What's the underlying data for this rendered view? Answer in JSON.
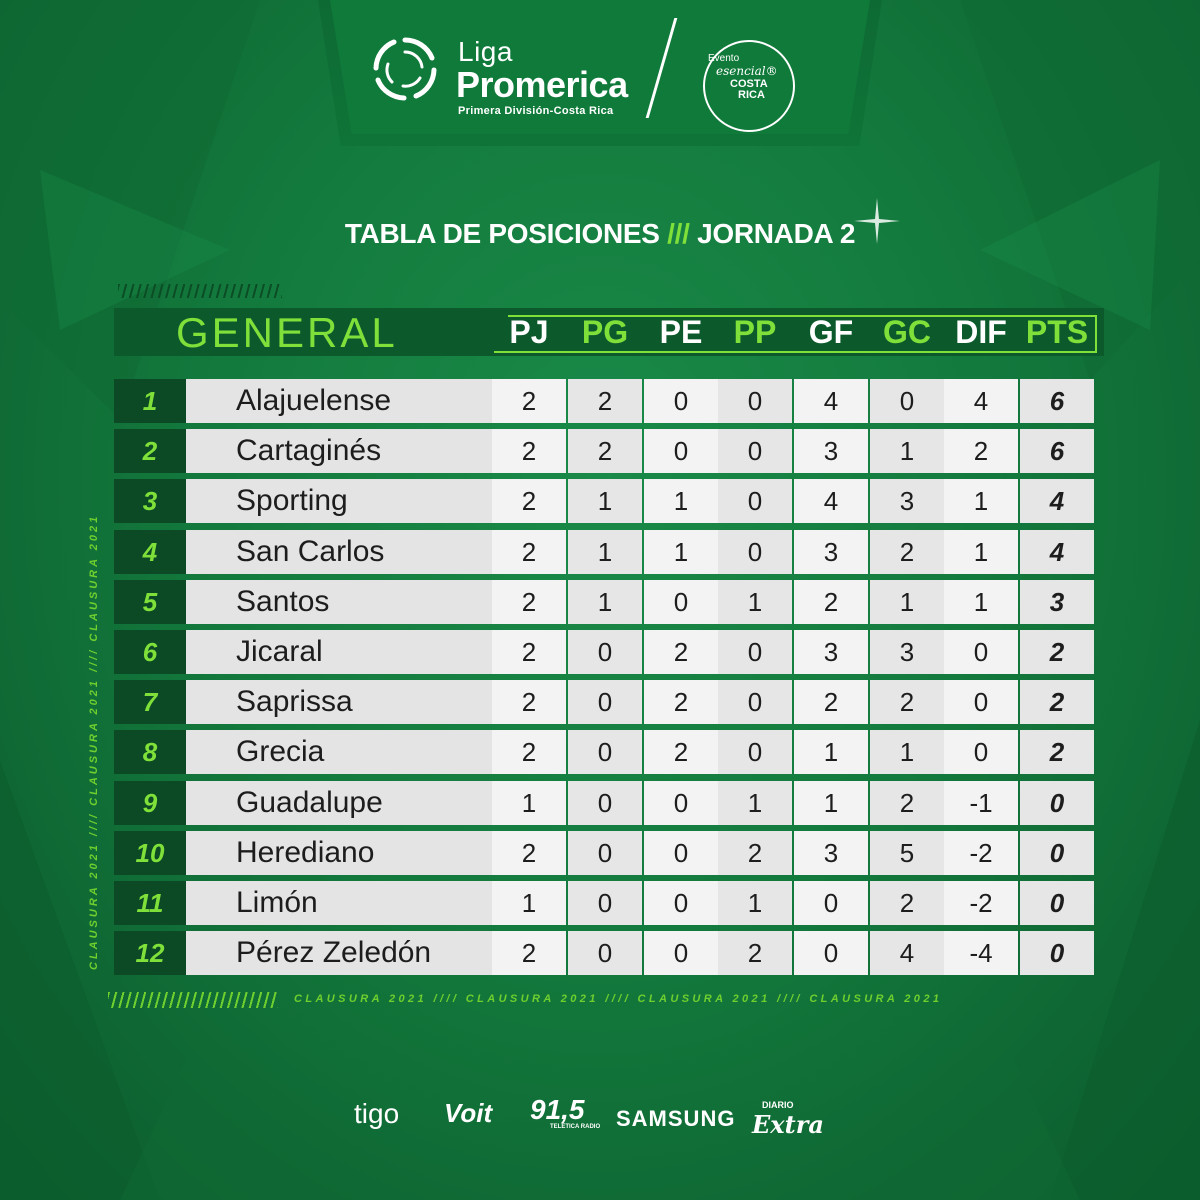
{
  "brand": {
    "liga": "Liga",
    "promerica": "Promerica",
    "subtitle": "Primera División-Costa Rica",
    "badge": {
      "line1": "Evento",
      "line2": "esencial®",
      "line3": "COSTA",
      "line4": "RICA"
    }
  },
  "title": {
    "left": "TABLA DE POSICIONES",
    "sep": "///",
    "right": "JORNADA 2"
  },
  "table": {
    "section_label": "GENERAL",
    "columns": [
      "PJ",
      "PG",
      "PE",
      "PP",
      "GF",
      "GC",
      "DIF",
      "PTS"
    ],
    "rows": [
      {
        "pos": "1",
        "team": "Alajuelense",
        "v": [
          "2",
          "2",
          "0",
          "0",
          "4",
          "0",
          "4",
          "6"
        ]
      },
      {
        "pos": "2",
        "team": "Cartaginés",
        "v": [
          "2",
          "2",
          "0",
          "0",
          "3",
          "1",
          "2",
          "6"
        ]
      },
      {
        "pos": "3",
        "team": "Sporting",
        "v": [
          "2",
          "1",
          "1",
          "0",
          "4",
          "3",
          "1",
          "4"
        ]
      },
      {
        "pos": "4",
        "team": "San Carlos",
        "v": [
          "2",
          "1",
          "1",
          "0",
          "3",
          "2",
          "1",
          "4"
        ]
      },
      {
        "pos": "5",
        "team": "Santos",
        "v": [
          "2",
          "1",
          "0",
          "1",
          "2",
          "1",
          "1",
          "3"
        ]
      },
      {
        "pos": "6",
        "team": "Jicaral",
        "v": [
          "2",
          "0",
          "2",
          "0",
          "3",
          "3",
          "0",
          "2"
        ]
      },
      {
        "pos": "7",
        "team": "Saprissa",
        "v": [
          "2",
          "0",
          "2",
          "0",
          "2",
          "2",
          "0",
          "2"
        ]
      },
      {
        "pos": "8",
        "team": "Grecia",
        "v": [
          "2",
          "0",
          "2",
          "0",
          "1",
          "1",
          "0",
          "2"
        ]
      },
      {
        "pos": "9",
        "team": "Guadalupe",
        "v": [
          "1",
          "0",
          "0",
          "1",
          "1",
          "2",
          "-1",
          "0"
        ]
      },
      {
        "pos": "10",
        "team": "Herediano",
        "v": [
          "2",
          "0",
          "0",
          "2",
          "3",
          "5",
          "-2",
          "0"
        ]
      },
      {
        "pos": "11",
        "team": "Limón",
        "v": [
          "1",
          "0",
          "0",
          "1",
          "0",
          "2",
          "-2",
          "0"
        ]
      },
      {
        "pos": "12",
        "team": "Pérez Zeledón",
        "v": [
          "2",
          "0",
          "0",
          "2",
          "0",
          "4",
          "-4",
          "0"
        ]
      }
    ]
  },
  "side_text": "CLAUSURA 2021 //// CLAUSURA 2021 //// CLAUSURA 2021",
  "bottom_text": "CLAUSURA 2021 //// CLAUSURA 2021 //// CLAUSURA 2021 //// CLAUSURA 2021",
  "sponsors": {
    "tigo": "tigo",
    "voit": "Voit",
    "radio": "91,5",
    "radio_sub": "TELETICA RADIO",
    "samsung": "SAMSUNG",
    "diario": "DIARIO",
    "extra": "Extra"
  },
  "colors": {
    "accent": "#7fe03a",
    "bg": "#137a3d",
    "dark": "#0c5a2c"
  }
}
